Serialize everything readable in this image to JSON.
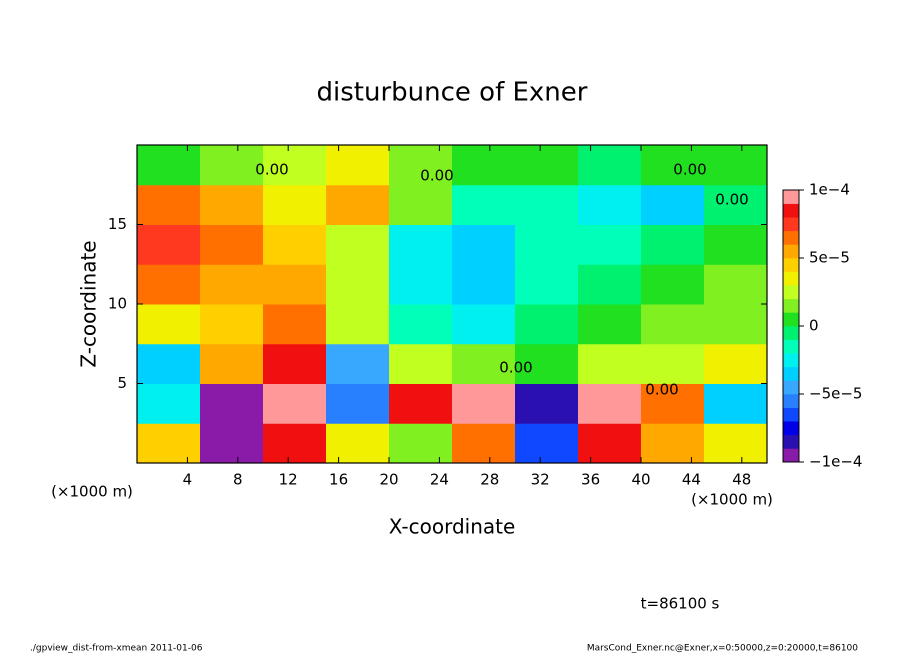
{
  "chart_data": {
    "type": "heatmap",
    "title": "disturbunce of Exner",
    "x_label": "X-coordinate",
    "y_label": "Z-coordinate",
    "x_unit": "(×1000 m)",
    "time_label": "t=86100 s",
    "footer_left": "./gpview_dist-from-xmean  2011-01-06",
    "footer_right": "MarsCond_Exner.nc@Exner,x=0:50000,z=0:20000,t=86100",
    "contour_labels": [
      "0.00",
      "0.00",
      "0.00",
      "0.00",
      "0.00",
      "0.00"
    ],
    "x": [
      2.5,
      7.5,
      12.5,
      17.5,
      22.5,
      27.5,
      32.5,
      37.5,
      42.5,
      47.5
    ],
    "y": [
      1.25,
      3.75,
      6.25,
      8.75,
      11.25,
      13.75,
      16.25,
      18.75
    ],
    "values": [
      [
        4e-05,
        -0.0001,
        8e-05,
        3e-05,
        1e-05,
        6e-05,
        -7e-05,
        8e-05,
        5e-05,
        3e-05
      ],
      [
        -3e-05,
        -9e-05,
        9e-05,
        -6e-05,
        8e-05,
        0.0001,
        -8e-05,
        9e-05,
        6e-05,
        -4e-05
      ],
      [
        -4e-05,
        5e-05,
        8e-05,
        -5e-05,
        2e-05,
        1e-05,
        0,
        2e-05,
        2e-05,
        3e-05
      ],
      [
        3e-05,
        4e-05,
        6e-05,
        2e-05,
        -2e-05,
        -3e-05,
        -1e-05,
        0,
        1e-05,
        1e-05
      ],
      [
        6e-05,
        5e-05,
        5e-05,
        2e-05,
        -3e-05,
        -4e-05,
        -2e-05,
        -1e-05,
        0,
        1e-05
      ],
      [
        7e-05,
        6e-05,
        4e-05,
        2e-05,
        -3e-05,
        -4e-05,
        -2e-05,
        -2e-05,
        -1e-05,
        0
      ],
      [
        6e-05,
        5e-05,
        3e-05,
        5e-05,
        1e-05,
        -2e-05,
        -2e-05,
        -3e-05,
        -4e-05,
        -1e-05
      ],
      [
        0,
        1e-05,
        2e-05,
        3e-05,
        1e-05,
        0,
        0,
        -1e-05,
        0,
        0
      ]
    ],
    "xlim": [
      0,
      50
    ],
    "ylim": [
      0,
      20
    ],
    "xticks": [
      4,
      8,
      12,
      16,
      20,
      24,
      28,
      32,
      36,
      40,
      44,
      48
    ],
    "yticks": [
      5,
      10,
      15
    ],
    "clim": [
      -0.0001,
      0.0001
    ],
    "cticks": [
      {
        "value": -0.0001,
        "label": "−1e−4"
      },
      {
        "value": -5e-05,
        "label": "−5e−5"
      },
      0,
      {
        "value": 5e-05,
        "label": "5e−5"
      },
      {
        "value": 0.0001,
        "label": "1e−4"
      }
    ],
    "colormap": [
      "#8a1aa8",
      "#2a10b0",
      "#0000e8",
      "#1048ff",
      "#2880ff",
      "#38a8ff",
      "#00d0ff",
      "#00f0f0",
      "#00ffb8",
      "#00f070",
      "#20e020",
      "#80f020",
      "#c0ff20",
      "#f0f000",
      "#ffd000",
      "#ffa800",
      "#ff7000",
      "#ff3820",
      "#f01010",
      "#ff9898"
    ],
    "overflow_color": "#ffffff"
  }
}
